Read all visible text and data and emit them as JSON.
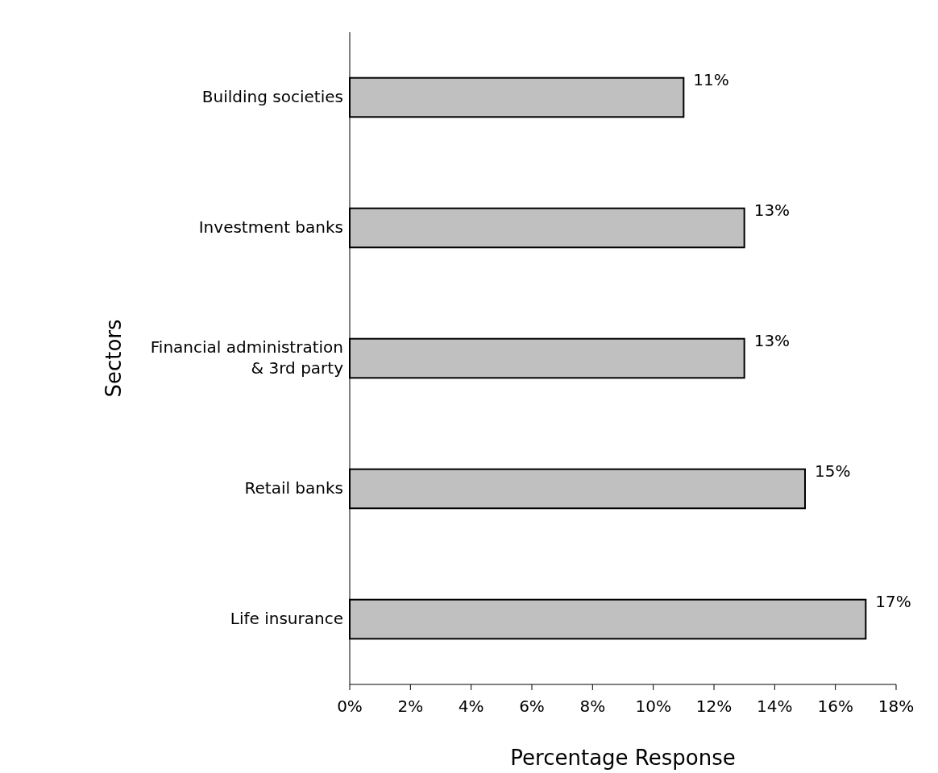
{
  "chart_data": {
    "type": "bar",
    "orientation": "horizontal",
    "xlabel": "Percentage Response",
    "ylabel": "Sectors",
    "categories": [
      "Building societies",
      "Investment banks",
      "Financial administration\n& 3rd party",
      "Retail banks",
      "Life insurance"
    ],
    "values": [
      11,
      13,
      13,
      15,
      17
    ],
    "value_labels": [
      "11%",
      "13%",
      "13%",
      "15%",
      "17%"
    ],
    "color": "#c0c0c0",
    "xlim": [
      0,
      18
    ],
    "xticks": [
      {
        "value": 0,
        "label": "0%"
      },
      {
        "value": 2,
        "label": "2%"
      },
      {
        "value": 4,
        "label": "4%"
      },
      {
        "value": 6,
        "label": "6%"
      },
      {
        "value": 8,
        "label": "8%"
      },
      {
        "value": 10,
        "label": "10%"
      },
      {
        "value": 12,
        "label": "12%"
      },
      {
        "value": 14,
        "label": "14%"
      },
      {
        "value": 16,
        "label": "16%"
      },
      {
        "value": 18,
        "label": "18%"
      }
    ],
    "grid": false
  }
}
